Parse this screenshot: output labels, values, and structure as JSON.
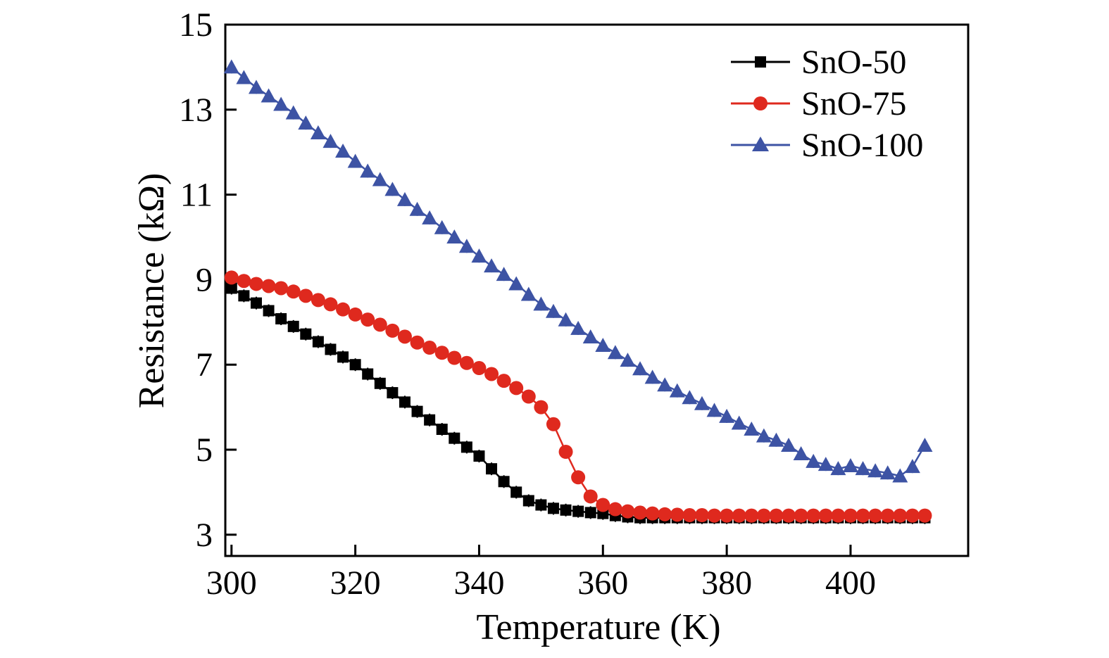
{
  "figure": {
    "background": "#ffffff"
  },
  "chart_data": {
    "type": "line",
    "title": "",
    "xlabel": "Temperature (K)",
    "ylabel": "Resistance (kΩ)",
    "xlim": [
      299,
      419
    ],
    "ylim": [
      2.5,
      15
    ],
    "xticks": [
      300,
      320,
      340,
      360,
      380,
      400
    ],
    "yticks": [
      3,
      5,
      7,
      9,
      11,
      13,
      15
    ],
    "grid": false,
    "legend_position": "top-right",
    "x": [
      300,
      302,
      304,
      306,
      308,
      310,
      312,
      314,
      316,
      318,
      320,
      322,
      324,
      326,
      328,
      330,
      332,
      334,
      336,
      338,
      340,
      342,
      344,
      346,
      348,
      350,
      352,
      354,
      356,
      358,
      360,
      362,
      364,
      366,
      368,
      370,
      372,
      374,
      376,
      378,
      380,
      382,
      384,
      386,
      388,
      390,
      392,
      394,
      396,
      398,
      400,
      402,
      404,
      406,
      408,
      410,
      412
    ],
    "series": [
      {
        "name": "SnO-50",
        "color": "#000000",
        "marker": "square",
        "values": [
          8.8,
          8.62,
          8.45,
          8.27,
          8.08,
          7.9,
          7.72,
          7.54,
          7.36,
          7.18,
          7.0,
          6.78,
          6.56,
          6.34,
          6.12,
          5.9,
          5.7,
          5.48,
          5.27,
          5.06,
          4.85,
          4.55,
          4.25,
          4.0,
          3.8,
          3.7,
          3.62,
          3.58,
          3.55,
          3.52,
          3.5,
          3.45,
          3.42,
          3.4,
          3.4,
          3.4,
          3.4,
          3.4,
          3.4,
          3.4,
          3.4,
          3.4,
          3.4,
          3.4,
          3.4,
          3.4,
          3.4,
          3.4,
          3.4,
          3.4,
          3.4,
          3.4,
          3.4,
          3.4,
          3.4,
          3.4,
          3.4
        ]
      },
      {
        "name": "SnO-75",
        "color": "#df291e",
        "marker": "circle",
        "values": [
          9.05,
          8.97,
          8.9,
          8.85,
          8.8,
          8.72,
          8.62,
          8.52,
          8.42,
          8.3,
          8.18,
          8.06,
          7.94,
          7.8,
          7.66,
          7.52,
          7.4,
          7.28,
          7.16,
          7.04,
          6.92,
          6.78,
          6.62,
          6.45,
          6.25,
          6.0,
          5.6,
          4.95,
          4.35,
          3.9,
          3.7,
          3.6,
          3.55,
          3.52,
          3.5,
          3.48,
          3.47,
          3.46,
          3.46,
          3.45,
          3.45,
          3.45,
          3.45,
          3.45,
          3.45,
          3.45,
          3.45,
          3.45,
          3.45,
          3.45,
          3.45,
          3.45,
          3.45,
          3.45,
          3.45,
          3.45,
          3.45
        ]
      },
      {
        "name": "SnO-100",
        "color": "#3d53a4",
        "marker": "triangle",
        "values": [
          14.0,
          13.75,
          13.52,
          13.32,
          13.12,
          12.92,
          12.68,
          12.45,
          12.25,
          12.02,
          11.78,
          11.55,
          11.35,
          11.12,
          10.88,
          10.65,
          10.45,
          10.22,
          10.0,
          9.78,
          9.55,
          9.32,
          9.12,
          8.9,
          8.65,
          8.42,
          8.25,
          8.05,
          7.85,
          7.65,
          7.45,
          7.28,
          7.1,
          6.9,
          6.7,
          6.52,
          6.38,
          6.22,
          6.08,
          5.92,
          5.78,
          5.62,
          5.48,
          5.32,
          5.22,
          5.1,
          4.9,
          4.72,
          4.65,
          4.55,
          4.62,
          4.55,
          4.5,
          4.45,
          4.38,
          4.6,
          5.1
        ]
      }
    ]
  }
}
